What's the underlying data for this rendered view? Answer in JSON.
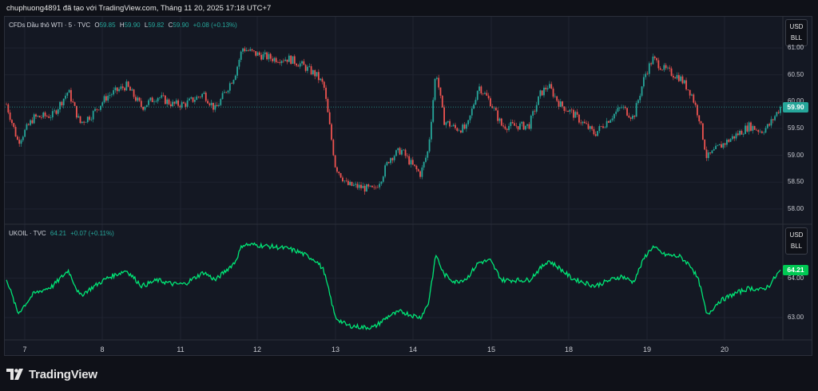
{
  "header": {
    "text": "chuphuong4891 đã tạo với TradingView.com, Tháng 11 20, 2025 17:18 UTC+7"
  },
  "logo": {
    "text": "TradingView",
    "icon": "tradingview-logo-icon"
  },
  "colors": {
    "up": "#26a69a",
    "down": "#ef5350",
    "line": "#00e676",
    "bg": "#141823",
    "grid": "#1f2330"
  },
  "pane1": {
    "symbol": "CFDs Dầu thô WTI · 5 · TVC",
    "o_label": "O",
    "o": "59.85",
    "h_label": "H",
    "h": "59.90",
    "l_label": "L",
    "l": "59.82",
    "c_label": "C",
    "c": "59.90",
    "change": "+0.08 (+0.13%)",
    "currency": "USD",
    "unit": "BLL",
    "last_price": "59.90",
    "y_ticks": [
      "61.00",
      "60.50",
      "60.00",
      "59.50",
      "59.00",
      "58.50",
      "58.00"
    ]
  },
  "pane2": {
    "symbol": "UKOIL · TVC",
    "last": "64.21",
    "change": "+0.07 (+0.11%)",
    "currency": "USD",
    "unit": "BLL",
    "last_price": "64.21",
    "y_ticks": [
      "64.00",
      "63.00"
    ]
  },
  "x_ticks": [
    "7",
    "8",
    "11",
    "12",
    "13",
    "14",
    "15",
    "18",
    "19",
    "20"
  ],
  "chart_data": [
    {
      "type": "candlestick",
      "title": "CFDs Dầu thô WTI · 5 · TVC",
      "ylim": [
        57.85,
        61.3
      ],
      "x_labels": [
        "7",
        "8",
        "11",
        "12",
        "13",
        "14",
        "15",
        "18",
        "19",
        "20"
      ],
      "close_series": [
        [
          0.0,
          59.95
        ],
        [
          1.5,
          59.25
        ],
        [
          3.5,
          59.7
        ],
        [
          6.0,
          59.75
        ],
        [
          8.0,
          60.2
        ],
        [
          9.5,
          59.6
        ],
        [
          11.0,
          59.75
        ],
        [
          13.0,
          60.1
        ],
        [
          15.5,
          60.3
        ],
        [
          17.5,
          59.9
        ],
        [
          19.5,
          60.1
        ],
        [
          21.5,
          59.95
        ],
        [
          23.0,
          59.95
        ],
        [
          25.5,
          60.15
        ],
        [
          27.0,
          59.85
        ],
        [
          29.5,
          60.5
        ],
        [
          30.5,
          61.0
        ],
        [
          32.0,
          60.9
        ],
        [
          34.5,
          60.8
        ],
        [
          36.5,
          60.8
        ],
        [
          38.0,
          60.7
        ],
        [
          40.0,
          60.5
        ],
        [
          41.0,
          60.3
        ],
        [
          42.5,
          58.8
        ],
        [
          44.0,
          58.45
        ],
        [
          46.0,
          58.4
        ],
        [
          47.5,
          58.35
        ],
        [
          48.5,
          58.6
        ],
        [
          49.5,
          58.95
        ],
        [
          51.0,
          59.1
        ],
        [
          52.5,
          58.8
        ],
        [
          53.5,
          58.65
        ],
        [
          54.5,
          59.1
        ],
        [
          55.5,
          60.6
        ],
        [
          56.5,
          59.65
        ],
        [
          58.0,
          59.5
        ],
        [
          59.5,
          59.5
        ],
        [
          61.0,
          60.3
        ],
        [
          62.5,
          60.0
        ],
        [
          64.0,
          59.55
        ],
        [
          65.5,
          59.55
        ],
        [
          67.5,
          59.55
        ],
        [
          69.0,
          60.15
        ],
        [
          70.0,
          60.3
        ],
        [
          71.5,
          59.95
        ],
        [
          73.0,
          59.8
        ],
        [
          74.5,
          59.6
        ],
        [
          76.0,
          59.4
        ],
        [
          78.0,
          59.7
        ],
        [
          79.5,
          59.9
        ],
        [
          81.0,
          59.7
        ],
        [
          82.5,
          60.5
        ],
        [
          83.5,
          60.8
        ],
        [
          85.0,
          60.6
        ],
        [
          87.0,
          60.45
        ],
        [
          88.5,
          60.15
        ],
        [
          89.5,
          59.7
        ],
        [
          90.5,
          58.95
        ],
        [
          92.0,
          59.15
        ],
        [
          94.0,
          59.35
        ],
        [
          96.0,
          59.55
        ],
        [
          97.5,
          59.45
        ],
        [
          98.5,
          59.55
        ],
        [
          100.0,
          59.9
        ]
      ]
    },
    {
      "type": "line",
      "title": "UKOIL · TVC",
      "ylim": [
        62.55,
        65.15
      ],
      "x_labels": [
        "7",
        "8",
        "11",
        "12",
        "13",
        "14",
        "15",
        "18",
        "19",
        "20"
      ],
      "series": [
        {
          "name": "UKOIL · TVC",
          "points": [
            [
              0.0,
              64.0
            ],
            [
              1.5,
              63.1
            ],
            [
              3.5,
              63.6
            ],
            [
              6.0,
              63.8
            ],
            [
              8.0,
              64.2
            ],
            [
              9.5,
              63.55
            ],
            [
              11.0,
              63.75
            ],
            [
              13.0,
              64.0
            ],
            [
              15.5,
              64.2
            ],
            [
              17.5,
              63.8
            ],
            [
              19.5,
              63.95
            ],
            [
              21.5,
              63.85
            ],
            [
              23.0,
              63.85
            ],
            [
              25.5,
              64.15
            ],
            [
              27.0,
              63.95
            ],
            [
              29.5,
              64.4
            ],
            [
              30.5,
              64.85
            ],
            [
              32.0,
              64.85
            ],
            [
              34.5,
              64.8
            ],
            [
              36.5,
              64.75
            ],
            [
              38.0,
              64.65
            ],
            [
              40.0,
              64.45
            ],
            [
              41.0,
              64.2
            ],
            [
              42.5,
              63.0
            ],
            [
              44.0,
              62.8
            ],
            [
              46.0,
              62.75
            ],
            [
              47.5,
              62.75
            ],
            [
              48.5,
              62.9
            ],
            [
              49.5,
              63.05
            ],
            [
              51.0,
              63.15
            ],
            [
              52.5,
              63.05
            ],
            [
              53.5,
              63.0
            ],
            [
              54.5,
              63.35
            ],
            [
              55.5,
              64.6
            ],
            [
              56.5,
              64.1
            ],
            [
              58.0,
              63.9
            ],
            [
              59.5,
              64.0
            ],
            [
              61.0,
              64.4
            ],
            [
              62.5,
              64.45
            ],
            [
              64.0,
              63.95
            ],
            [
              65.5,
              63.95
            ],
            [
              67.5,
              63.95
            ],
            [
              69.0,
              64.25
            ],
            [
              70.0,
              64.45
            ],
            [
              71.5,
              64.25
            ],
            [
              73.0,
              64.0
            ],
            [
              74.5,
              63.9
            ],
            [
              76.0,
              63.8
            ],
            [
              78.0,
              63.95
            ],
            [
              79.5,
              64.05
            ],
            [
              81.0,
              63.9
            ],
            [
              82.5,
              64.55
            ],
            [
              83.5,
              64.8
            ],
            [
              85.0,
              64.6
            ],
            [
              87.0,
              64.55
            ],
            [
              88.5,
              64.3
            ],
            [
              89.5,
              63.9
            ],
            [
              90.5,
              63.05
            ],
            [
              92.0,
              63.4
            ],
            [
              94.0,
              63.6
            ],
            [
              96.0,
              63.75
            ],
            [
              97.5,
              63.7
            ],
            [
              98.5,
              63.8
            ],
            [
              100.0,
              64.21
            ]
          ]
        }
      ]
    }
  ]
}
